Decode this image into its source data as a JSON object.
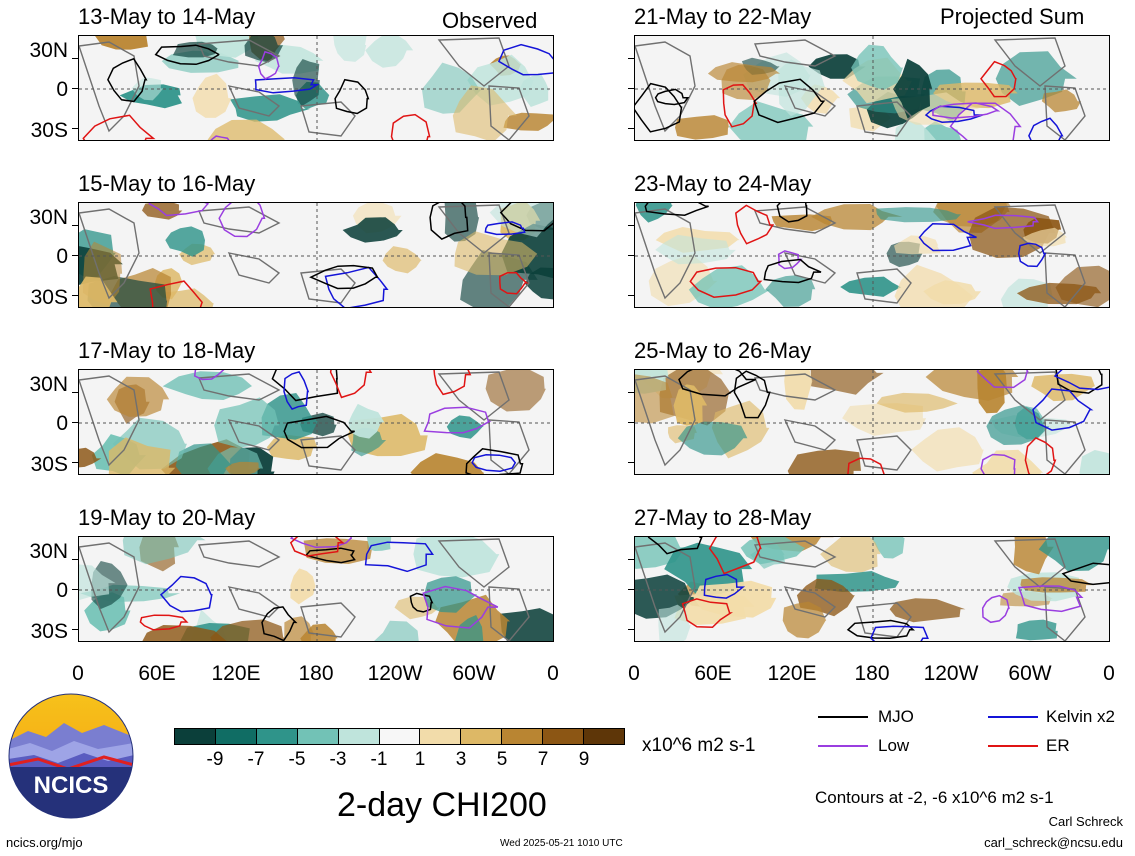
{
  "panels_left": [
    {
      "title": "13-May to 14-May",
      "tag": "Observed"
    },
    {
      "title": "15-May to 16-May",
      "tag": ""
    },
    {
      "title": "17-May to 18-May",
      "tag": ""
    },
    {
      "title": "19-May to 20-May",
      "tag": ""
    }
  ],
  "panels_right": [
    {
      "title": "21-May to 22-May",
      "tag": "Projected Sum"
    },
    {
      "title": "23-May to 24-May",
      "tag": ""
    },
    {
      "title": "25-May to 26-May",
      "tag": ""
    },
    {
      "title": "27-May to 28-May",
      "tag": ""
    }
  ],
  "lat_labels": [
    "30N",
    "0",
    "30S"
  ],
  "lon_labels": [
    "0",
    "60E",
    "120E",
    "180",
    "120W",
    "60W",
    "0"
  ],
  "colorbar": {
    "labels": [
      "-9",
      "-7",
      "-5",
      "-3",
      "-1",
      "1",
      "3",
      "5",
      "7",
      "9"
    ],
    "colors": [
      "#0b3f3a",
      "#106d64",
      "#2f948a",
      "#72c2b6",
      "#bfe4dc",
      "#f7f7f7",
      "#f2dcaa",
      "#ddb866",
      "#b98532",
      "#8c5614",
      "#5e3608"
    ],
    "units": "x10^6 m2 s-1"
  },
  "legend": {
    "mjo": {
      "label": "MJO",
      "color": "#000000"
    },
    "kelvin": {
      "label": "Kelvin x2",
      "color": "#1414d8"
    },
    "low": {
      "label": "Low",
      "color": "#9a3ee0"
    },
    "er": {
      "label": "ER",
      "color": "#e01414"
    }
  },
  "logo_text": "NCICS",
  "main_title": "2-day CHI200",
  "contour_note": "Contours at -2, -6 x10^6 m2 s-1",
  "author": "Carl Schreck",
  "email": "carl_schreck@ncsu.edu",
  "url": "ncics.org/mjo",
  "timestamp": "Wed 2025-05-21 1010 UTC"
}
